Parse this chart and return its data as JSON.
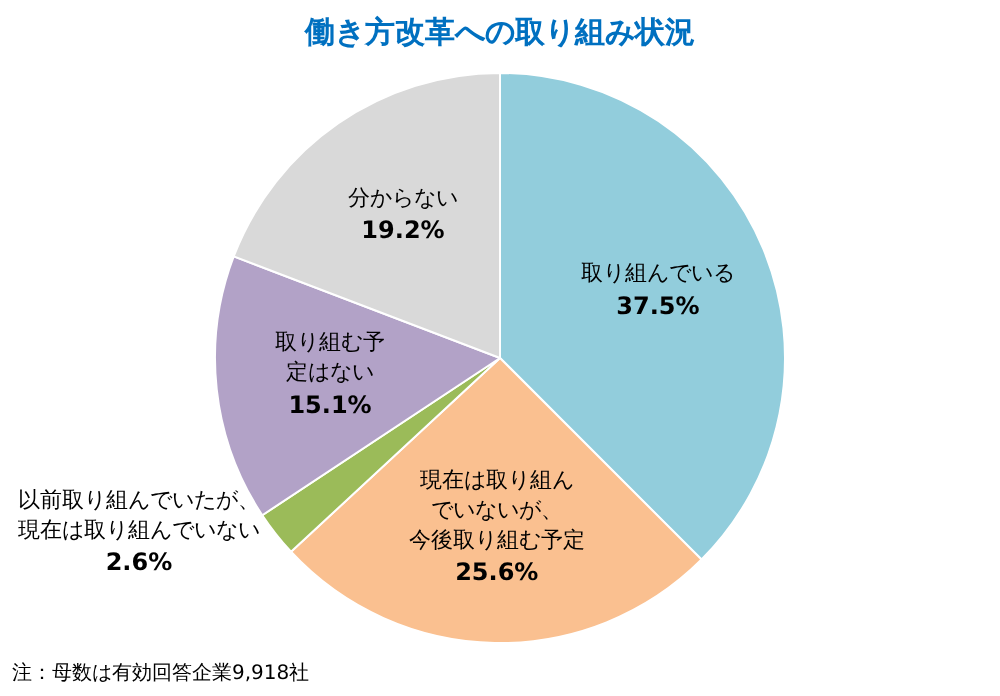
{
  "chart_data": {
    "type": "pie",
    "title": "働き方改革への取り組み状況",
    "categories": [
      "取り組んでいる",
      "現在は取り組んでいないが、今後取り組む予定",
      "以前取り組んでいたが、現在は取り組んでいない",
      "取り組む予定はない",
      "分からない"
    ],
    "values": [
      37.5,
      25.6,
      2.6,
      15.1,
      19.2
    ],
    "value_labels": [
      "37.5%",
      "25.6%",
      "2.6%",
      "15.1%",
      "19.2%"
    ],
    "colors": [
      "#92cddc",
      "#fac090",
      "#9bbb59",
      "#b2a2c7",
      "#d9d9d9"
    ],
    "legend": false,
    "annotations": [
      "注：母数は有効回答企業9,918社"
    ]
  }
}
